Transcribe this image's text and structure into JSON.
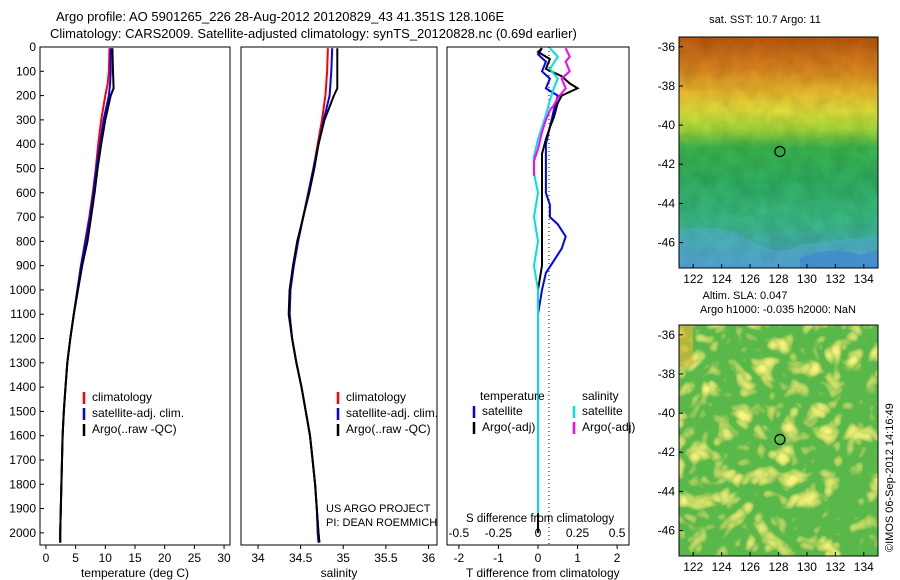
{
  "header": {
    "line1": "Argo profile: AO 5901265_226 28-Aug-2012 20120829_43 41.351S 128.106E",
    "line2": "Climatology: CARS2009. Satellite-adjusted climatology: synTS_20120828.nc (0.69d earlier)"
  },
  "colors": {
    "climatology": "#ff0000",
    "satellite": "#0000ff",
    "argo": "#000000",
    "s_satellite": "#00e0e0",
    "s_argo": "#ff00ff"
  },
  "chart_data": [
    {
      "type": "line",
      "id": "temperature",
      "xlabel": "temperature (deg C)",
      "xlim": [
        -1,
        31
      ],
      "xticks": [
        0,
        5,
        10,
        15,
        20,
        25,
        30
      ],
      "ylim": [
        0,
        2050
      ],
      "yticks": [
        0,
        100,
        200,
        300,
        400,
        500,
        600,
        700,
        800,
        900,
        1000,
        1100,
        1200,
        1300,
        1400,
        1500,
        1600,
        1700,
        1800,
        1900,
        2000
      ],
      "legend": [
        "climatology",
        "satellite-adj. clim.",
        "Argo(..raw -QC)"
      ],
      "series": [
        {
          "name": "climatology",
          "color": "climatology",
          "points": [
            [
              10.7,
              5
            ],
            [
              10.6,
              100
            ],
            [
              10.4,
              150
            ],
            [
              10.0,
              200
            ],
            [
              9.3,
              300
            ],
            [
              8.8,
              400
            ],
            [
              8.4,
              500
            ],
            [
              7.9,
              600
            ],
            [
              7.3,
              700
            ],
            [
              6.6,
              800
            ],
            [
              5.9,
              900
            ],
            [
              5.3,
              1000
            ],
            [
              4.7,
              1100
            ],
            [
              4.1,
              1200
            ],
            [
              3.6,
              1300
            ],
            [
              3.3,
              1400
            ],
            [
              3.0,
              1500
            ],
            [
              2.8,
              1600
            ],
            [
              2.7,
              1700
            ],
            [
              2.6,
              1800
            ],
            [
              2.5,
              1900
            ],
            [
              2.4,
              2000
            ],
            [
              2.4,
              2040
            ]
          ]
        },
        {
          "name": "satellite-adj. clim.",
          "color": "satellite",
          "points": [
            [
              10.9,
              5
            ],
            [
              10.9,
              100
            ],
            [
              10.8,
              150
            ],
            [
              10.6,
              200
            ],
            [
              9.7,
              300
            ],
            [
              9.1,
              400
            ],
            [
              8.5,
              500
            ],
            [
              8.0,
              600
            ],
            [
              7.4,
              700
            ],
            [
              6.7,
              800
            ],
            [
              5.9,
              900
            ],
            [
              5.3,
              1000
            ],
            [
              4.7,
              1100
            ],
            [
              4.1,
              1200
            ],
            [
              3.6,
              1300
            ],
            [
              3.3,
              1400
            ],
            [
              3.0,
              1500
            ],
            [
              2.8,
              1600
            ],
            [
              2.7,
              1700
            ],
            [
              2.6,
              1800
            ],
            [
              2.5,
              1900
            ],
            [
              2.4,
              2000
            ],
            [
              2.4,
              2040
            ]
          ]
        },
        {
          "name": "Argo(..raw -QC)",
          "color": "argo",
          "points": [
            [
              11.2,
              5
            ],
            [
              11.3,
              100
            ],
            [
              11.4,
              170
            ],
            [
              10.9,
              200
            ],
            [
              10.0,
              300
            ],
            [
              9.3,
              400
            ],
            [
              8.7,
              500
            ],
            [
              8.2,
              600
            ],
            [
              7.6,
              700
            ],
            [
              7.0,
              800
            ],
            [
              6.1,
              900
            ],
            [
              5.4,
              1000
            ],
            [
              4.7,
              1100
            ],
            [
              4.1,
              1200
            ],
            [
              3.6,
              1300
            ],
            [
              3.3,
              1400
            ],
            [
              3.0,
              1500
            ],
            [
              2.8,
              1600
            ],
            [
              2.7,
              1700
            ],
            [
              2.6,
              1800
            ],
            [
              2.5,
              1900
            ],
            [
              2.4,
              2000
            ],
            [
              2.4,
              2040
            ]
          ]
        }
      ]
    },
    {
      "type": "line",
      "id": "salinity",
      "xlabel": "salinity",
      "xlim": [
        33.8,
        36.1
      ],
      "xticks": [
        34,
        34.5,
        35,
        35.5,
        36
      ],
      "ylim": [
        0,
        2050
      ],
      "legend": [
        "climatology",
        "satellite-adj. clim.",
        "Argo(..raw -QC)"
      ],
      "series": [
        {
          "name": "climatology",
          "color": "climatology",
          "points": [
            [
              34.82,
              5
            ],
            [
              34.81,
              100
            ],
            [
              34.79,
              200
            ],
            [
              34.75,
              300
            ],
            [
              34.7,
              400
            ],
            [
              34.65,
              500
            ],
            [
              34.59,
              600
            ],
            [
              34.53,
              700
            ],
            [
              34.47,
              800
            ],
            [
              34.42,
              900
            ],
            [
              34.38,
              1000
            ],
            [
              34.37,
              1100
            ],
            [
              34.4,
              1200
            ],
            [
              34.45,
              1300
            ],
            [
              34.51,
              1400
            ],
            [
              34.56,
              1500
            ],
            [
              34.61,
              1600
            ],
            [
              34.64,
              1700
            ],
            [
              34.67,
              1800
            ],
            [
              34.69,
              1900
            ],
            [
              34.71,
              2000
            ],
            [
              34.72,
              2040
            ]
          ]
        },
        {
          "name": "satellite-adj. clim.",
          "color": "satellite",
          "points": [
            [
              34.87,
              5
            ],
            [
              34.86,
              100
            ],
            [
              34.84,
              200
            ],
            [
              34.77,
              300
            ],
            [
              34.71,
              400
            ],
            [
              34.65,
              500
            ],
            [
              34.59,
              600
            ],
            [
              34.53,
              700
            ],
            [
              34.47,
              800
            ],
            [
              34.42,
              900
            ],
            [
              34.38,
              1000
            ],
            [
              34.37,
              1100
            ],
            [
              34.4,
              1200
            ],
            [
              34.45,
              1300
            ],
            [
              34.51,
              1400
            ],
            [
              34.56,
              1500
            ],
            [
              34.61,
              1600
            ],
            [
              34.64,
              1700
            ],
            [
              34.67,
              1800
            ],
            [
              34.69,
              1900
            ],
            [
              34.7,
              2000
            ],
            [
              34.71,
              2040
            ]
          ]
        },
        {
          "name": "Argo(..raw -QC)",
          "color": "argo",
          "points": [
            [
              34.93,
              5
            ],
            [
              34.93,
              100
            ],
            [
              34.93,
              170
            ],
            [
              34.89,
              200
            ],
            [
              34.78,
              300
            ],
            [
              34.71,
              400
            ],
            [
              34.66,
              500
            ],
            [
              34.6,
              600
            ],
            [
              34.53,
              700
            ],
            [
              34.46,
              800
            ],
            [
              34.41,
              900
            ],
            [
              34.37,
              1000
            ],
            [
              34.36,
              1100
            ],
            [
              34.4,
              1200
            ],
            [
              34.45,
              1300
            ],
            [
              34.51,
              1400
            ],
            [
              34.56,
              1500
            ],
            [
              34.61,
              1600
            ],
            [
              34.64,
              1700
            ],
            [
              34.67,
              1800
            ],
            [
              34.69,
              1900
            ],
            [
              34.71,
              2000
            ],
            [
              34.72,
              2040
            ]
          ]
        }
      ],
      "credit": [
        "US ARGO PROJECT",
        "PI: DEAN ROEMMICH"
      ]
    },
    {
      "type": "line",
      "id": "differences",
      "xlabel": "T difference from climatology",
      "xlabel_top": "S difference from climatology",
      "xlim": [
        -2.3,
        2.3
      ],
      "xticks": [
        -2,
        -1,
        0,
        1,
        2
      ],
      "xticks_top_labels": [
        "-0.5",
        "-0.25",
        "0",
        "0.25",
        "0.5"
      ],
      "xticks_top_values": [
        -2,
        -1,
        0,
        1,
        2
      ],
      "ylim": [
        0,
        2050
      ],
      "legend_left_title": "temperature",
      "legend_right_title": "salinity",
      "legend_left": [
        "satellite",
        "Argo(-adj)"
      ],
      "legend_right": [
        "satellite",
        "Argo(-adj)"
      ],
      "series": [
        {
          "name": "T satellite",
          "color": "satellite",
          "points": [
            [
              0.1,
              5
            ],
            [
              0.0,
              30
            ],
            [
              0.2,
              60
            ],
            [
              0.1,
              100
            ],
            [
              0.3,
              130
            ],
            [
              0.2,
              170
            ],
            [
              0.5,
              200
            ],
            [
              0.4,
              260
            ],
            [
              0.3,
              330
            ],
            [
              0.2,
              400
            ],
            [
              0.2,
              500
            ],
            [
              0.2,
              600
            ],
            [
              0.3,
              650
            ],
            [
              0.3,
              700
            ],
            [
              0.5,
              730
            ],
            [
              0.7,
              780
            ],
            [
              0.6,
              830
            ],
            [
              0.4,
              880
            ],
            [
              0.2,
              930
            ],
            [
              0.1,
              1000
            ],
            [
              0.0,
              1100
            ],
            [
              0.0,
              1300
            ],
            [
              0.0,
              1500
            ],
            [
              0.0,
              1700
            ],
            [
              0.0,
              1900
            ],
            [
              0.0,
              2000
            ]
          ]
        },
        {
          "name": "T Argo(-adj)",
          "color": "argo",
          "points": [
            [
              0.1,
              5
            ],
            [
              0.0,
              20
            ],
            [
              0.3,
              50
            ],
            [
              0.2,
              90
            ],
            [
              0.6,
              120
            ],
            [
              0.8,
              150
            ],
            [
              1.0,
              170
            ],
            [
              0.6,
              200
            ],
            [
              0.5,
              230
            ],
            [
              0.4,
              290
            ],
            [
              0.3,
              330
            ],
            [
              0.2,
              380
            ],
            [
              0.1,
              440
            ],
            [
              0.1,
              500
            ],
            [
              0.1,
              600
            ],
            [
              0.1,
              700
            ],
            [
              0.1,
              800
            ],
            [
              0.1,
              900
            ],
            [
              0.0,
              1000
            ],
            [
              0.0,
              1200
            ],
            [
              0.0,
              1400
            ],
            [
              0.0,
              1600
            ],
            [
              0.0,
              1800
            ],
            [
              0.0,
              2000
            ]
          ]
        },
        {
          "name": "S satellite",
          "color": "s_satellite",
          "points": [
            [
              0.3,
              5
            ],
            [
              0.5,
              40
            ],
            [
              0.3,
              90
            ],
            [
              0.5,
              130
            ],
            [
              0.4,
              170
            ],
            [
              0.3,
              220
            ],
            [
              0.2,
              280
            ],
            [
              0.1,
              330
            ],
            [
              0.0,
              380
            ],
            [
              -0.1,
              450
            ],
            [
              -0.1,
              520
            ],
            [
              0.0,
              600
            ],
            [
              -0.1,
              700
            ],
            [
              0.0,
              800
            ],
            [
              -0.1,
              900
            ],
            [
              0.0,
              1000
            ],
            [
              0.0,
              1200
            ],
            [
              0.0,
              1400
            ],
            [
              0.0,
              1600
            ],
            [
              0.0,
              1800
            ],
            [
              0.0,
              1920
            ]
          ]
        },
        {
          "name": "S Argo(-adj)",
          "color": "s_argo",
          "points": [
            [
              0.7,
              5
            ],
            [
              0.8,
              40
            ],
            [
              0.7,
              60
            ],
            [
              0.8,
              100
            ],
            [
              0.6,
              130
            ],
            [
              0.7,
              170
            ],
            [
              0.5,
              210
            ],
            [
              0.4,
              240
            ],
            [
              0.3,
              260
            ],
            [
              0.2,
              300
            ],
            [
              0.1,
              350
            ],
            [
              0.0,
              420
            ],
            [
              -0.1,
              470
            ],
            [
              -0.1,
              530
            ]
          ]
        }
      ]
    },
    {
      "type": "heatmap",
      "id": "sst_map",
      "title": "sat. SST: 10.7 Argo: 11",
      "xticks": [
        122,
        124,
        126,
        128,
        130,
        132,
        134
      ],
      "yticks": [
        -36,
        -38,
        -40,
        -42,
        -44,
        -46
      ],
      "xlim": [
        121,
        135
      ],
      "ylim": [
        -47.3,
        -35.5
      ],
      "marker": [
        128.1,
        -41.35
      ]
    },
    {
      "type": "heatmap",
      "id": "sla_map",
      "title": "Altim. SLA: 0.047",
      "subtitle": "Argo h1000: -0.035 h2000: NaN",
      "xticks": [
        122,
        124,
        126,
        128,
        130,
        132,
        134
      ],
      "yticks": [
        -36,
        -38,
        -40,
        -42,
        -44,
        -46
      ],
      "xlim": [
        121,
        135
      ],
      "ylim": [
        -47.3,
        -35.5
      ],
      "marker": [
        128.1,
        -41.35
      ]
    }
  ],
  "credit_vertical": "©IMOS 06-Sep-2012 14:16:49"
}
